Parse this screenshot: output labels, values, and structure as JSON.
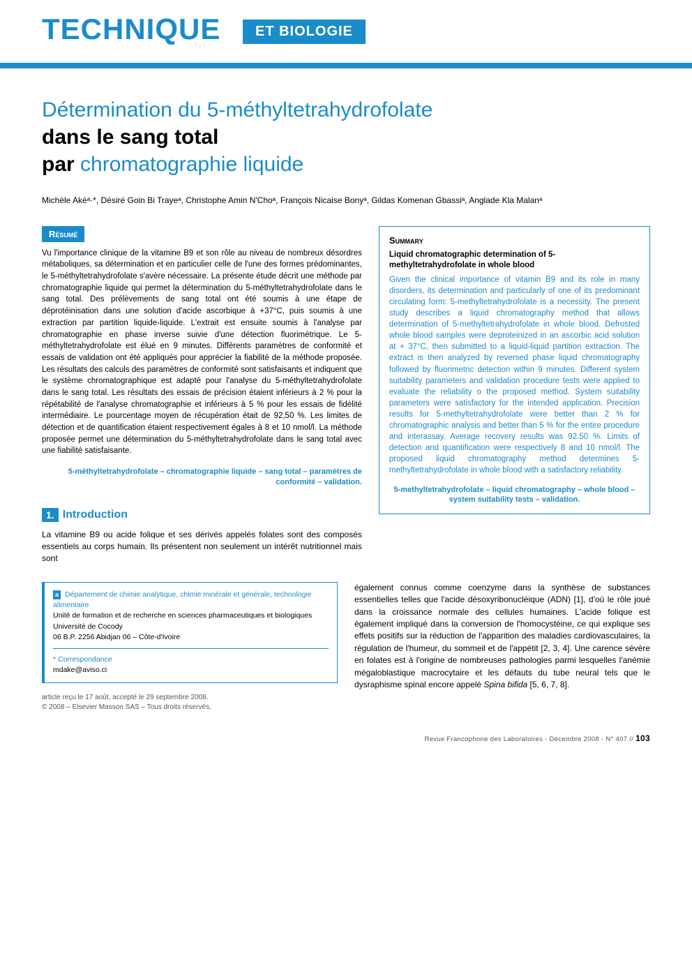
{
  "banner": {
    "title_left": "TECHNIQUE",
    "badge": "ET BIOLOGIE"
  },
  "article_title": {
    "line1_light": "Détermination du 5-méthyltetrahydrofolate",
    "line2_bold": "dans le sang total",
    "line3_bold": "par",
    "line3_light": " chromatographie liquide"
  },
  "authors": "Michèle Akéᵃ·*, Désiré Goin Bi Trayeᵃ, Christophe Amin N'Choᵃ, François Nicaise Bonyᵃ, Gildas Komenan Gbassiᵃ, Anglade Kla Malanᵃ",
  "resume": {
    "header": "Résumé",
    "body": "Vu l'importance clinique de la vitamine B9 et son rôle au niveau de nombreux désordres métaboliques, sa détermination et en particulier celle de l'une des formes prédominantes, le 5-méthyltetrahydrofolate s'avère nécessaire. La présente étude décrit une méthode par chromatographie liquide qui permet la détermination du 5-méthyltetrahydrofolate dans le sang total. Des prélèvements de sang total ont été soumis à une étape de déprotéinisation dans une solution d'acide ascorbique à +37°C, puis soumis à une extraction par partition liquide-liquide. L'extrait est ensuite soumis à l'analyse par chromatographie en phase inverse suivie d'une détection fluorimétrique. Le 5-méthyltetrahydrofolate est élué en 9 minutes. Différents paramètres de conformité et essais de validation ont été appliqués pour apprécier la fiabilité de la méthode proposée. Les résultats des calculs des paramètres de conformité sont satisfaisants et indiquent que le système chromatographique est adapté pour l'analyse du 5-méthyltetrahydrofolate dans le sang total. Les résultats des essais de précision étaient inférieurs à 2 % pour la répétabilité de l'analyse chromatographie et inférieurs à 5 % pour les essais de fidélité intermédiaire. Le pourcentage moyen de récupération était de 92,50 %. Les limites de détection et de quantification étaient respectivement égales à 8 et 10 nmol/l. La méthode proposée permet une détermination du 5-méthyltetrahydrofolate dans le sang total avec une fiabilité satisfaisante.",
    "keywords": "5-méthyltetrahydrofolate – chromatographie liquide – sang total – paramètres de conformité – validation."
  },
  "summary": {
    "header": "Summary",
    "title": "Liquid chromatographic determination of 5-methyltetrahydrofolate in whole blood",
    "body": "Given the clinical importance of vitamin B9 and its role in many disorders, its determination and particularly of one of its predominant circulating form: 5-methyltetrahydrofolate is a necessity. The present study describes a liquid chromatography method that allows determination of 5-methyltetrahydrofolate in whole blood. Defrosted whole blood samples were deproteinized in an ascorbic acid solution at + 37°C, then submitted to a liquid-liquid partition extraction. The extract is then analyzed by reversed phase liquid chromatography followed by fluorimetric detection within 9 minutes. Different system suitability parameters and validation procedure tests were applied to evaluate the reliability o the proposed method. System suitability parameters were satisfactory for the intended application. Precision results for 5-methyltetrahydrofolate were better than 2 % for chromatographic analysis and better than 5 % for the entire procedure and interassay. Average recovery results was 92.50 %. Limits of detection and quantification were respectively 8 and 10 nmol/l. The proposed liquid chromatography method determines 5-methyltetrahydrofolate in whole blood with a satisfactory reliability.",
    "keywords": "5-methyltetrahydrofolate – liquid chromatography – whole blood – system suitability tests – validation."
  },
  "section1": {
    "num": "1.",
    "label": "Introduction",
    "intro_para": "La vitamine B9 ou acide folique et ses dérivés appelés folates sont des composés essentiels au corps humain. Ils présentent non seulement un intérêt nutritionnel mais sont"
  },
  "affiliation": {
    "marker": "a",
    "dept": "Département de chimie analytique, chimie minérale et générale, technologie alimentaire",
    "unit": "Unité de formation et de recherche en sciences pharmaceutiques et biologiques",
    "univ": "Université de Cocody",
    "addr": "06 B.P. 2256 Abidjan 06 – Côte-d'Ivoire",
    "corr_label": "* Correspondance",
    "corr_email": "mdake@aviso.ci"
  },
  "received": {
    "line1": "article reçu le 17 août, accepté le 29 septembre 2008.",
    "line2": "© 2008 – Elsevier Masson SAS – Tous droits réservés."
  },
  "body_continue": "également connus comme coenzyme dans la synthèse de substances essentielles telles que l'acide désoxyribonucléique (ADN) [1], d'où le rôle joué dans la croissance normale des cellules humaines. L'acide folique est également impliqué dans la conversion de l'homocystéine, ce qui explique ses effets positifs sur la réduction de l'apparition des maladies cardiovasculaires, la régulation de l'humeur, du sommeil et de l'appétit [2, 3, 4]. Une carence sévère en folates est à l'origine de nombreuses pathologies parmi lesquelles l'anémie mégaloblastique macrocytaire et les défauts du tube neural tels que le dysraphisme spinal encore appelé ",
  "body_continue_em": "Spina bifida",
  "body_continue_refs": " [5, 6, 7, 8].",
  "footer": {
    "journal": "Revue Francophone des Laboratoires - Décembre 2008 - N° 407 //",
    "page": "103"
  },
  "colors": {
    "brand": "#1a8cc9",
    "text": "#000000",
    "muted": "#555555",
    "bg": "#ffffff"
  }
}
